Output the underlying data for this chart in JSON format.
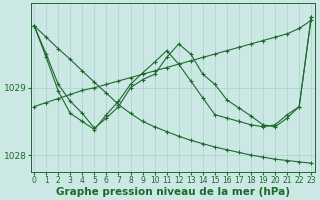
{
  "bg_color": "#cce8e4",
  "grid_color": "#aad0cb",
  "line_color": "#1a6b2a",
  "xlabel": "Graphe pression niveau de la mer (hPa)",
  "xlabel_fontsize": 7.5,
  "tick_fontsize": 5.5,
  "ytick_label_fontsize": 6.5,
  "ylim": [
    1027.75,
    1030.25
  ],
  "xlim": [
    -0.3,
    23.3
  ],
  "yticks": [
    1028,
    1029
  ],
  "xticks": [
    0,
    1,
    2,
    3,
    4,
    5,
    6,
    7,
    8,
    9,
    10,
    11,
    12,
    13,
    14,
    15,
    16,
    17,
    18,
    19,
    20,
    21,
    22,
    23
  ],
  "line1_x": [
    0,
    1,
    2,
    3,
    4,
    5,
    6,
    7,
    8,
    9,
    10,
    11,
    12,
    13,
    14,
    15,
    16,
    17,
    18,
    19,
    20,
    21,
    22,
    23
  ],
  "line1": [
    1029.92,
    1029.75,
    1029.58,
    1029.42,
    1029.25,
    1029.08,
    1028.92,
    1028.75,
    1028.62,
    1028.5,
    1028.42,
    1028.35,
    1028.28,
    1028.22,
    1028.17,
    1028.12,
    1028.08,
    1028.04,
    1028.0,
    1027.97,
    1027.94,
    1027.92,
    1027.9,
    1027.88
  ],
  "line2_x": [
    0,
    1,
    2,
    3,
    4,
    5,
    6,
    7,
    8,
    9,
    10,
    11,
    12,
    13,
    14,
    15,
    16,
    17,
    18,
    19,
    20,
    21,
    22,
    23
  ],
  "line2": [
    1028.72,
    1028.78,
    1028.84,
    1028.9,
    1028.96,
    1029.0,
    1029.05,
    1029.1,
    1029.15,
    1029.2,
    1029.25,
    1029.3,
    1029.35,
    1029.4,
    1029.45,
    1029.5,
    1029.55,
    1029.6,
    1029.65,
    1029.7,
    1029.75,
    1029.8,
    1029.88,
    1030.0
  ],
  "line3_x": [
    0,
    1,
    2,
    3,
    4,
    5,
    6,
    7,
    8,
    9,
    10,
    11,
    12,
    13,
    14,
    15,
    16,
    17,
    18,
    19,
    20,
    21,
    22,
    23
  ],
  "line3": [
    1029.92,
    1029.5,
    1029.05,
    1028.8,
    1028.62,
    1028.4,
    1028.55,
    1028.72,
    1029.0,
    1029.12,
    1029.2,
    1029.45,
    1029.65,
    1029.5,
    1029.2,
    1029.05,
    1028.82,
    1028.7,
    1028.58,
    1028.45,
    1028.42,
    1028.55,
    1028.72,
    1030.05
  ],
  "line4_x": [
    0,
    1,
    2,
    3,
    4,
    5,
    6,
    7,
    8,
    9,
    10,
    11,
    12,
    13,
    14,
    15,
    16,
    17,
    18,
    19,
    20,
    21,
    22,
    23
  ],
  "line4": [
    1029.92,
    1029.45,
    1028.95,
    1028.62,
    1028.5,
    1028.38,
    1028.6,
    1028.8,
    1029.05,
    1029.22,
    1029.38,
    1029.55,
    1029.35,
    1029.1,
    1028.85,
    1028.6,
    1028.55,
    1028.5,
    1028.45,
    1028.42,
    1028.45,
    1028.6,
    1028.72,
    1030.05
  ]
}
